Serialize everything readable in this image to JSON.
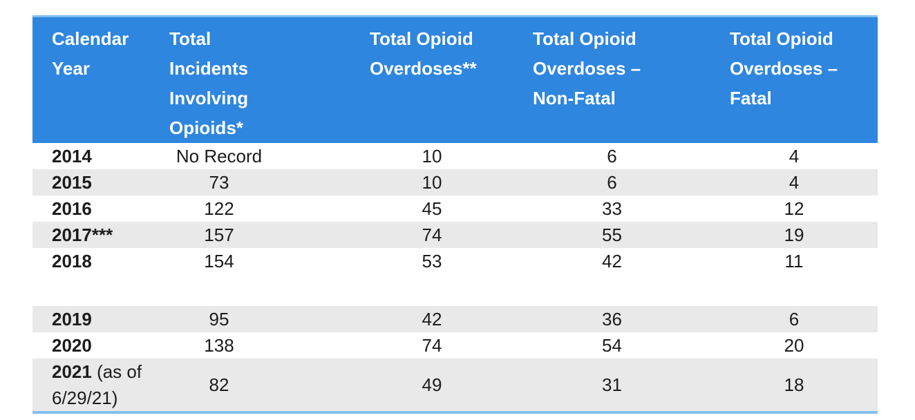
{
  "style": {
    "header_bg": "#2e86de",
    "header_text": "#ffffff",
    "alt_row_bg": "#e9e9e9",
    "table_border_light_blue": "#82c0ef",
    "body_text": "#1c1c1c"
  },
  "table": {
    "columns": [
      "Calendar\nYear",
      "Total\nIncidents\nInvolving\nOpioids*",
      "Total Opioid\nOverdoses**",
      "Total Opioid\nOverdoses –\nNon-Fatal",
      "Total Opioid\nOverdoses –\nFatal"
    ],
    "rows": [
      {
        "year": "2014",
        "year_note": "",
        "cells": [
          "No Record",
          "10",
          "6",
          "4"
        ],
        "alt": false,
        "empty": false
      },
      {
        "year": "2015",
        "year_note": "",
        "cells": [
          "73",
          "10",
          "6",
          "4"
        ],
        "alt": true,
        "empty": false
      },
      {
        "year": "2016",
        "year_note": "",
        "cells": [
          "122",
          "45",
          "33",
          "12"
        ],
        "alt": false,
        "empty": false
      },
      {
        "year": "2017***",
        "year_note": "",
        "cells": [
          "157",
          "74",
          "55",
          "19"
        ],
        "alt": true,
        "empty": false
      },
      {
        "year": "2018",
        "year_note": "",
        "cells": [
          "154",
          "53",
          "42",
          "11"
        ],
        "alt": false,
        "empty": false
      },
      {
        "year": "",
        "year_note": "",
        "cells": [
          "",
          "",
          "",
          ""
        ],
        "alt": false,
        "empty": true
      },
      {
        "year": "2019",
        "year_note": "",
        "cells": [
          "95",
          "42",
          "36",
          "6"
        ],
        "alt": true,
        "empty": false
      },
      {
        "year": "2020",
        "year_note": "",
        "cells": [
          "138",
          "74",
          "54",
          "20"
        ],
        "alt": false,
        "empty": false
      },
      {
        "year": "2021",
        "year_note": " (as of 6/29/21)",
        "cells": [
          "82",
          "49",
          "31",
          "18"
        ],
        "alt": true,
        "empty": false
      }
    ]
  }
}
